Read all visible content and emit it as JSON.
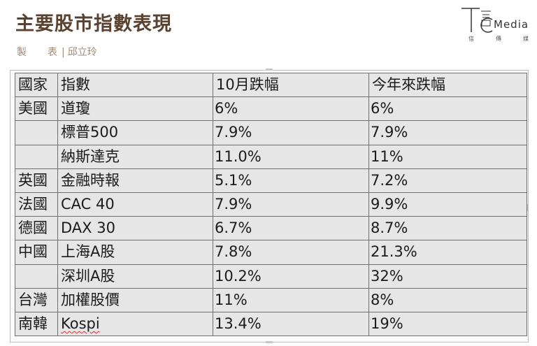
{
  "header": {
    "title": "主要股市指數表現",
    "credit_label": "製表",
    "credit_separator": "|",
    "credit_name": "邱立玲"
  },
  "logo": {
    "wordmark": "Media",
    "sub": [
      "信",
      "傳",
      "媒"
    ]
  },
  "table": {
    "columns": [
      "國家",
      "指數",
      "10月跌幅",
      "今年來跌幅"
    ],
    "rows": [
      [
        "美國",
        "道瓊",
        "6%",
        "6%"
      ],
      [
        "",
        "標普500",
        "7.9%",
        "7.9%"
      ],
      [
        "",
        "納斯達克",
        "11.0%",
        "11%"
      ],
      [
        "英國",
        "金融時報",
        "5.1%",
        "7.2%"
      ],
      [
        "法國",
        "CAC 40",
        "7.9%",
        "9.9%"
      ],
      [
        "德國",
        "DAX 30",
        "6.7%",
        "8.7%"
      ],
      [
        "中國",
        "上海A股",
        "7.8%",
        "21.3%"
      ],
      [
        "",
        "深圳A股",
        "10.2%",
        "32%"
      ],
      [
        "台灣",
        "加權股價",
        "11%",
        "8%"
      ],
      [
        "南韓",
        "Kospi",
        "13.4%",
        "19%"
      ]
    ]
  }
}
